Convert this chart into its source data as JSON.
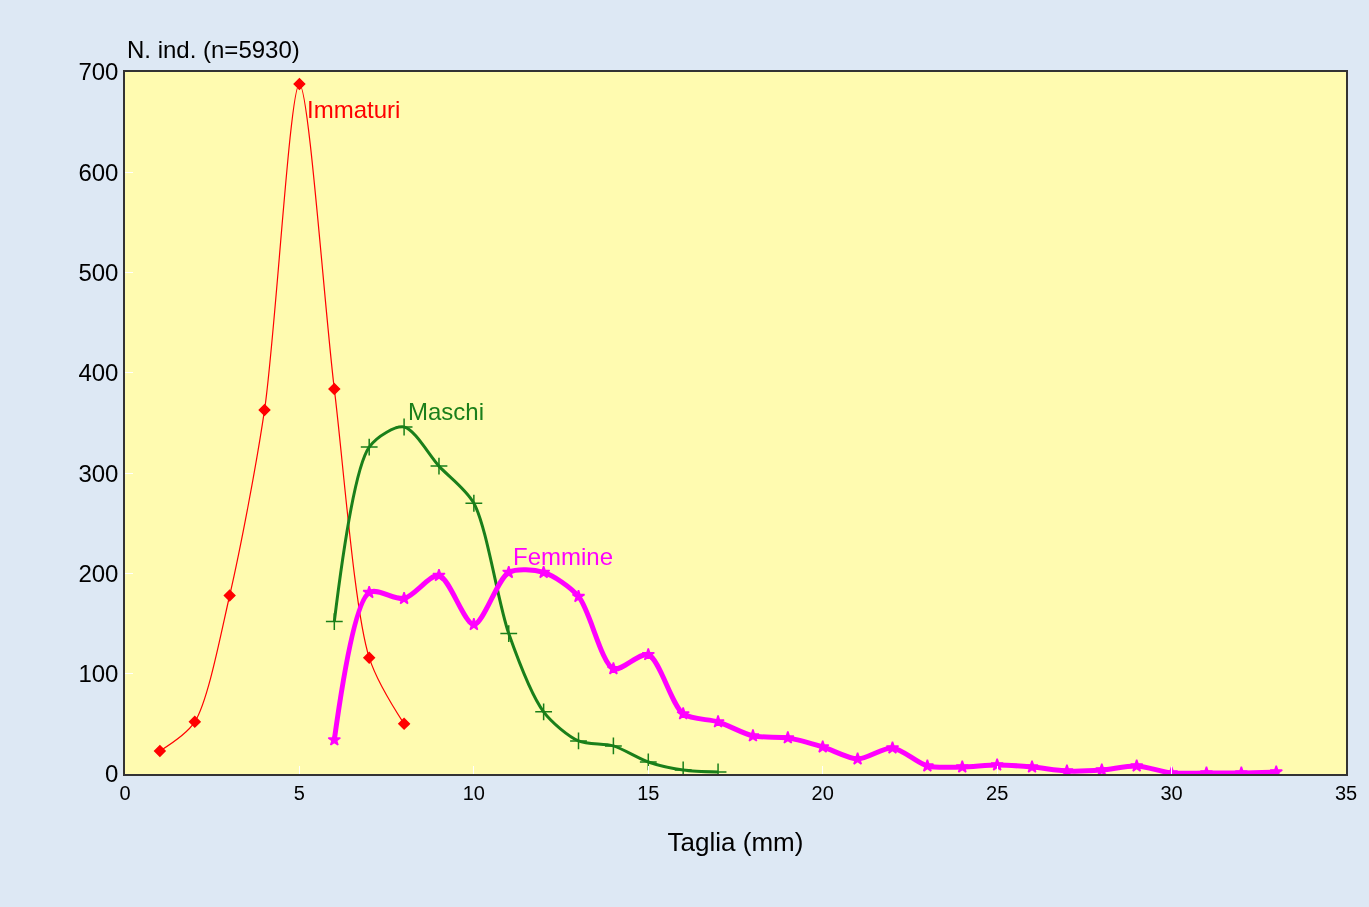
{
  "chart_data": {
    "type": "line",
    "xlabel": "Taglia (mm)",
    "ylabel": "N. ind. (n=5930)",
    "xlim": [
      0,
      35
    ],
    "xticks": [
      0,
      5,
      10,
      15,
      20,
      25,
      30,
      35
    ],
    "ylim": [
      0,
      700
    ],
    "yticks": [
      0,
      100,
      200,
      300,
      400,
      500,
      600,
      700
    ],
    "grid": false,
    "legend": false,
    "series": [
      {
        "name": "Immaturi",
        "color": "#ff0000",
        "marker": "diamond",
        "x": [
          1,
          2,
          3,
          4,
          5,
          6,
          7,
          8
        ],
        "values": [
          23,
          52,
          178,
          363,
          688,
          384,
          116,
          50
        ]
      },
      {
        "name": "Maschi",
        "color": "#1a7f1a",
        "marker": "cross",
        "x": [
          6,
          7,
          8,
          9,
          10,
          11,
          12,
          13,
          14,
          15,
          16,
          17
        ],
        "values": [
          152,
          326,
          346,
          307,
          270,
          140,
          62,
          33,
          28,
          12,
          4,
          2
        ]
      },
      {
        "name": "Femmine",
        "color": "#ff00ff",
        "marker": "star",
        "x": [
          6,
          7,
          8,
          9,
          10,
          11,
          12,
          13,
          14,
          15,
          16,
          17,
          18,
          19,
          20,
          21,
          22,
          23,
          24,
          25,
          26,
          27,
          28,
          29,
          30,
          31,
          32,
          33
        ],
        "values": [
          34,
          181,
          175,
          198,
          149,
          201,
          201,
          177,
          105,
          119,
          60,
          52,
          38,
          36,
          27,
          15,
          26,
          8,
          7,
          9,
          7,
          3,
          4,
          8,
          1,
          1,
          1,
          2
        ]
      }
    ]
  }
}
